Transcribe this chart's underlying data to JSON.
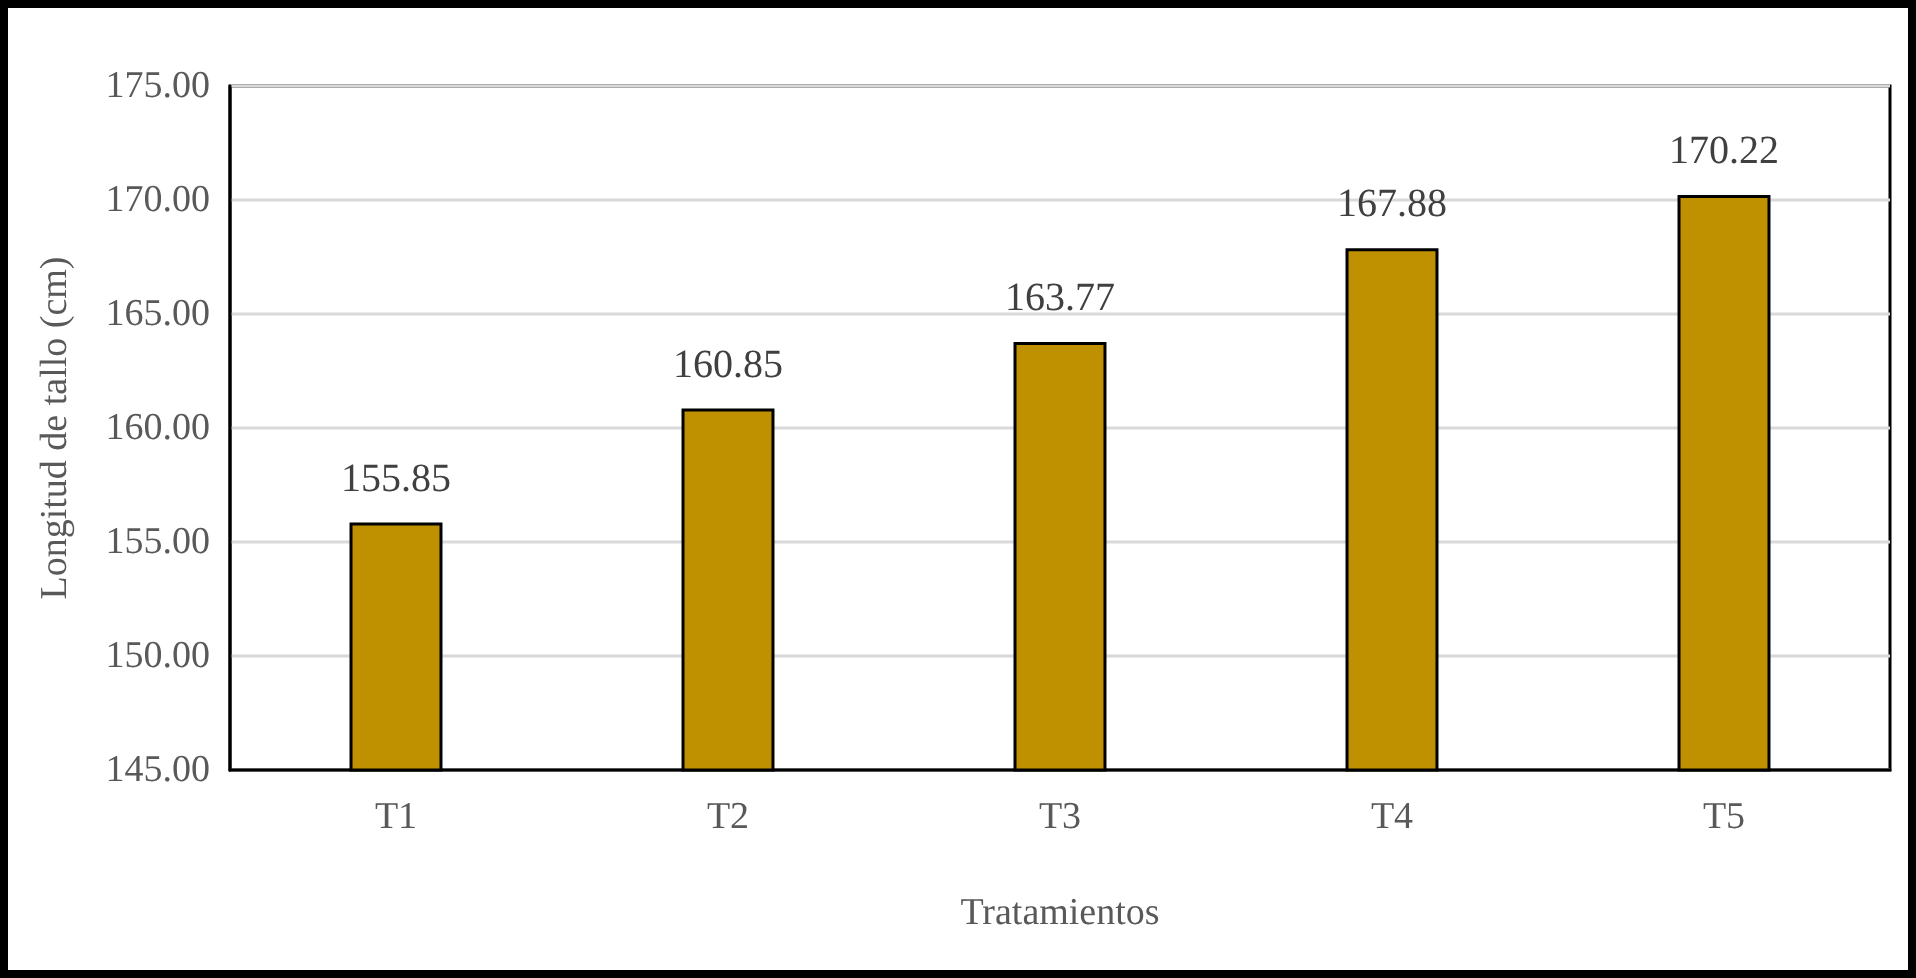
{
  "chart_data": {
    "type": "bar",
    "xlabel": "Tratamientos",
    "ylabel": "Longitud de tallo (cm)",
    "categories": [
      "T1",
      "T2",
      "T3",
      "T4",
      "T5"
    ],
    "values": [
      155.85,
      160.85,
      163.77,
      167.88,
      170.22
    ],
    "color": "#bf9000",
    "ylim": [
      145,
      175
    ],
    "yticks": [
      {
        "value": 145,
        "label": "145.00"
      },
      {
        "value": 150,
        "label": "150.00"
      },
      {
        "value": 155,
        "label": "155.00"
      },
      {
        "value": 160,
        "label": "160.00"
      },
      {
        "value": 165,
        "label": "165.00"
      },
      {
        "value": 170,
        "label": "170.00"
      },
      {
        "value": 175,
        "label": "175.00"
      }
    ],
    "grid": "y",
    "data_labels": true
  }
}
